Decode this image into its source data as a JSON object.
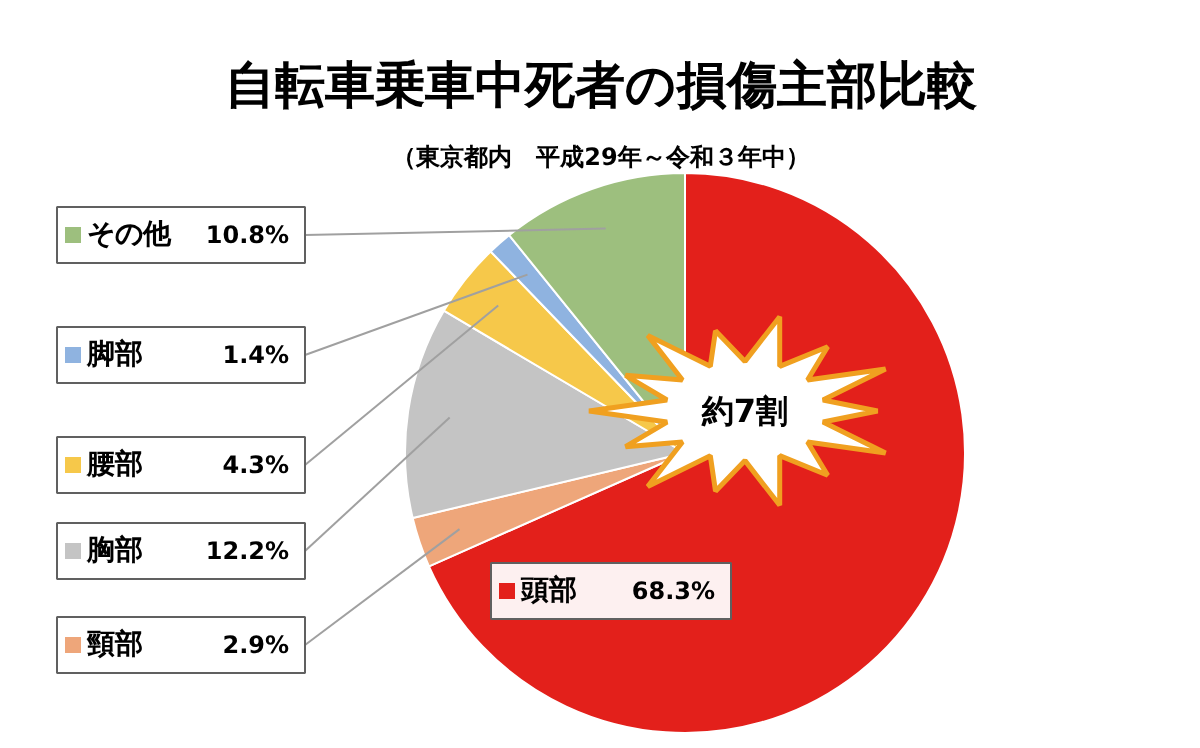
{
  "chart_data": {
    "type": "pie",
    "title": "自転車乗車中死者の損傷主部比較",
    "subtitle": "（東京都内　平成29年～令和３年中）",
    "categories": [
      "頭部",
      "頸部",
      "胸部",
      "腰部",
      "脚部",
      "その他"
    ],
    "values": [
      68.3,
      2.9,
      12.2,
      4.3,
      1.4,
      10.8
    ],
    "value_labels": [
      "68.3%",
      "2.9%",
      "12.2%",
      "4.3%",
      "1.4%",
      "10.8%"
    ],
    "colors": [
      "#e3201b",
      "#eea67a",
      "#c4c4c4",
      "#f6c84a",
      "#8fb3e0",
      "#9dbf7e"
    ],
    "annotations": [
      "約7割"
    ],
    "legend": "left"
  }
}
